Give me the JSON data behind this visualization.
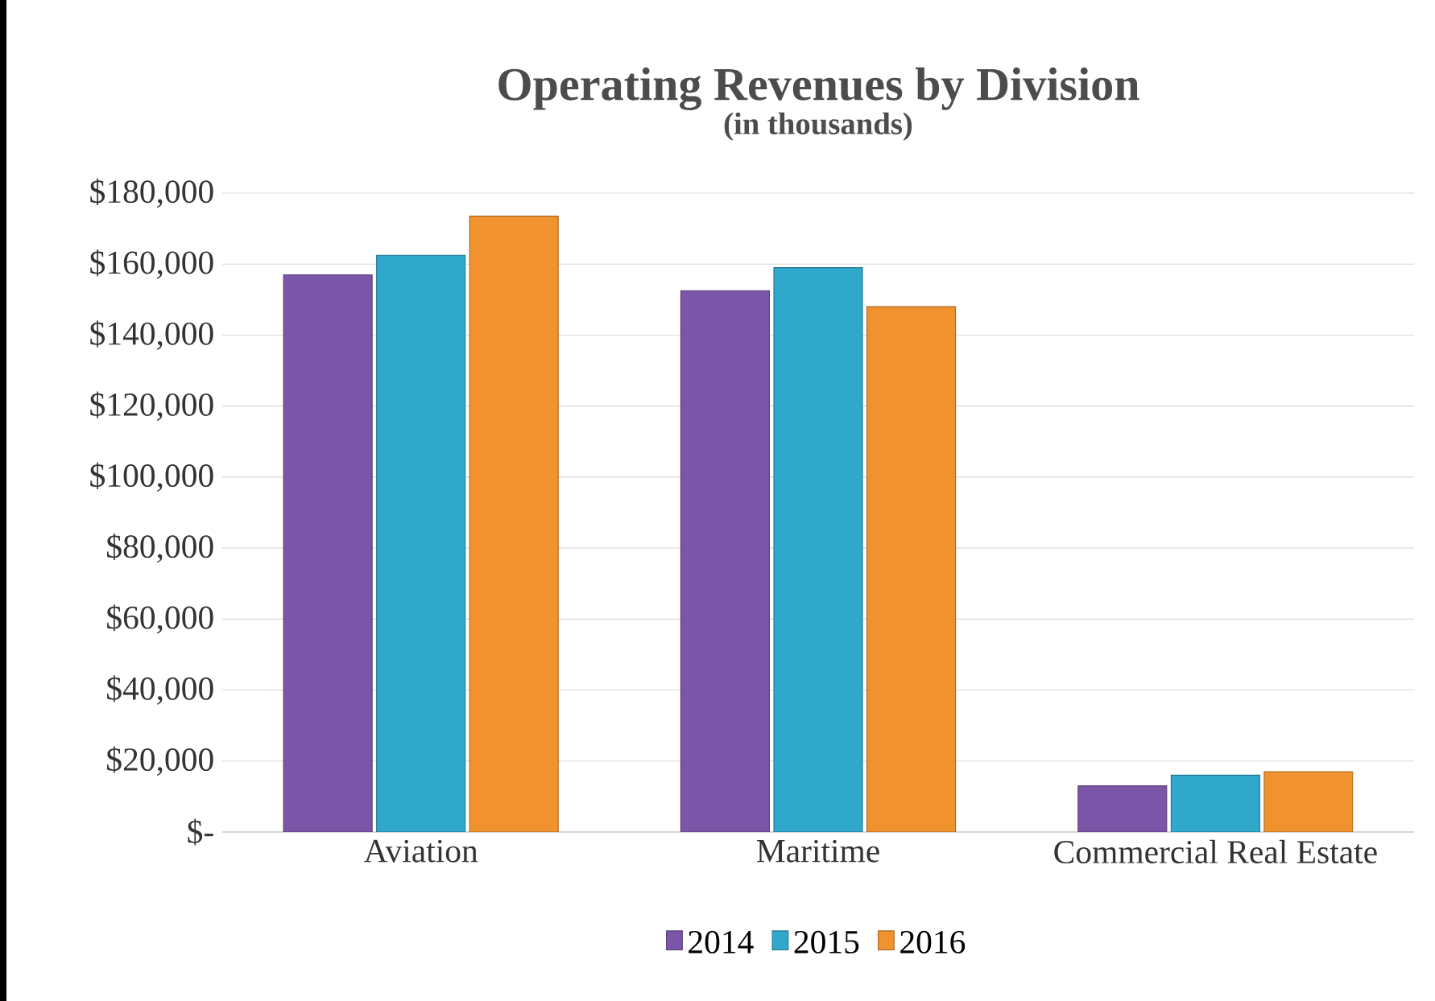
{
  "chart_data": {
    "type": "bar",
    "title": "Operating Revenues by Division",
    "subtitle": "(in thousands)",
    "categories": [
      "Aviation",
      "Maritime",
      "Commercial Real Estate"
    ],
    "series": [
      {
        "name": "2014",
        "color": "#7b56a8",
        "values": [
          157000,
          152500,
          13000
        ]
      },
      {
        "name": "2015",
        "color": "#2fa8cc",
        "values": [
          162500,
          159000,
          16000
        ]
      },
      {
        "name": "2016",
        "color": "#f0922e",
        "values": [
          173500,
          148000,
          17000
        ]
      }
    ],
    "ylim": [
      0,
      180000
    ],
    "yticks": [
      {
        "value": 0,
        "label": "$-"
      },
      {
        "value": 20000,
        "label": "$20,000"
      },
      {
        "value": 40000,
        "label": "$40,000"
      },
      {
        "value": 60000,
        "label": "$60,000"
      },
      {
        "value": 80000,
        "label": "$80,000"
      },
      {
        "value": 100000,
        "label": "$100,000"
      },
      {
        "value": 120000,
        "label": "$120,000"
      },
      {
        "value": 140000,
        "label": "$140,000"
      },
      {
        "value": 160000,
        "label": "$160,000"
      },
      {
        "value": 180000,
        "label": "$180,000"
      }
    ],
    "grid": "y",
    "legend": "bottom"
  }
}
